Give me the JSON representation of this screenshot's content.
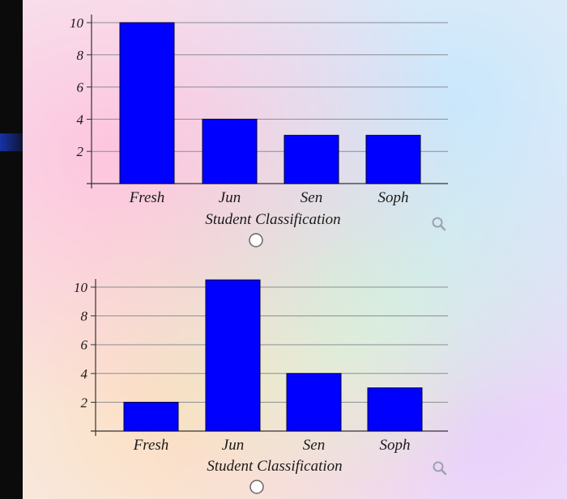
{
  "chart_data": [
    {
      "type": "bar",
      "categories": [
        "Fresh",
        "Jun",
        "Sen",
        "Soph"
      ],
      "values": [
        10,
        4,
        3,
        3
      ],
      "xlabel": "Student Classification",
      "ylabel": "",
      "ylim": [
        0,
        10
      ],
      "yticks": [
        "2",
        "4",
        "6",
        "8",
        "10"
      ],
      "grid": true,
      "bar_color": "#0000ff"
    },
    {
      "type": "bar",
      "categories": [
        "Fresh",
        "Jun",
        "Sen",
        "Soph"
      ],
      "values": [
        2,
        10.5,
        4,
        3
      ],
      "xlabel": "Student Classification",
      "ylabel": "",
      "ylim": [
        0,
        10
      ],
      "yticks": [
        "2",
        "4",
        "6",
        "8",
        "10"
      ],
      "grid": true,
      "bar_color": "#0000ff"
    }
  ],
  "icons": {
    "zoom": "magnifier-icon",
    "radio": "radio-button"
  }
}
